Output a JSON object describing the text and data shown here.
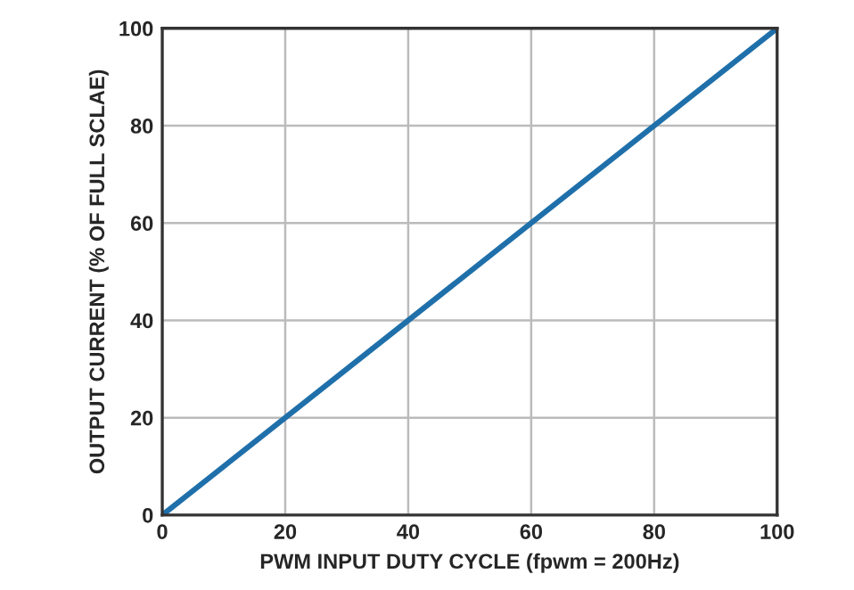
{
  "chart_data": {
    "type": "line",
    "xlabel": "PWM INPUT DUTY CYCLE (fpwm = 200Hz)",
    "ylabel": "OUTPUT CURRENT (% OF FULL SCLAE)",
    "x": [
      0,
      100
    ],
    "series": [
      {
        "color": "#1f70aa",
        "values": [
          0,
          100
        ]
      }
    ],
    "xlim": [
      0,
      100
    ],
    "ylim": [
      0,
      100
    ],
    "xticks": [
      0,
      20,
      40,
      60,
      80,
      100
    ],
    "yticks": [
      0,
      20,
      40,
      60,
      80,
      100
    ],
    "grid": true,
    "line_style": "solid"
  }
}
